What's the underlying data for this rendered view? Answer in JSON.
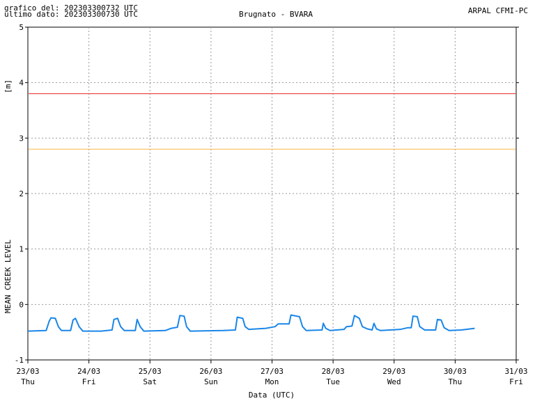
{
  "chart_data": {
    "type": "line",
    "header_left": [
      "grafico del: 202303300732 UTC",
      "ultimo dato: 202303300730 UTC"
    ],
    "title": "Brugnato - BVARA",
    "header_right": "ARPAL CFMI-PC",
    "ylabel_unit": "[m]",
    "ylabel": "MEAN CREEK LEVEL",
    "xlabel": "Data (UTC)",
    "xlim": [
      23,
      31
    ],
    "xticks": [
      {
        "value": 23,
        "label": "23/03"
      },
      {
        "value": 24,
        "label": "24/03"
      },
      {
        "value": 25,
        "label": "25/03"
      },
      {
        "value": 26,
        "label": "26/03"
      },
      {
        "value": 27,
        "label": "27/03"
      },
      {
        "value": 28,
        "label": "28/03"
      },
      {
        "value": 29,
        "label": "29/03"
      },
      {
        "value": 30,
        "label": "30/03"
      },
      {
        "value": 31,
        "label": "31/03"
      }
    ],
    "xtick_days": [
      "Thu",
      "Fri",
      "Sat",
      "Sun",
      "Mon",
      "Tue",
      "Wed",
      "Thu",
      "Fri"
    ],
    "ylim": [
      -1,
      5
    ],
    "yticks": [
      -1,
      0,
      1,
      2,
      3,
      4,
      5
    ],
    "grid": true,
    "thresholds": [
      {
        "value": 3.8,
        "color": "#e8261e"
      },
      {
        "value": 2.8,
        "color": "#ffb347"
      }
    ],
    "x": [
      23.0,
      23.3,
      23.35,
      23.38,
      23.45,
      23.5,
      23.55,
      23.7,
      23.74,
      23.78,
      23.84,
      23.9,
      24.2,
      24.38,
      24.41,
      24.47,
      24.52,
      24.58,
      24.76,
      24.79,
      24.84,
      24.9,
      25.25,
      25.35,
      25.45,
      25.49,
      25.56,
      25.6,
      25.66,
      26.2,
      26.4,
      26.43,
      26.52,
      26.56,
      26.62,
      26.9,
      27.05,
      27.1,
      27.28,
      27.31,
      27.45,
      27.5,
      27.56,
      27.82,
      27.84,
      27.88,
      27.95,
      28.18,
      28.22,
      28.31,
      28.35,
      28.43,
      28.48,
      28.56,
      28.64,
      28.67,
      28.71,
      28.78,
      29.1,
      29.22,
      29.28,
      29.31,
      29.38,
      29.42,
      29.5,
      29.68,
      29.71,
      29.77,
      29.82,
      29.9,
      30.1,
      30.32
    ],
    "series": [
      {
        "color": "#1a86e8",
        "values": [
          -0.48,
          -0.47,
          -0.3,
          -0.24,
          -0.25,
          -0.4,
          -0.47,
          -0.47,
          -0.28,
          -0.25,
          -0.4,
          -0.48,
          -0.48,
          -0.46,
          -0.27,
          -0.25,
          -0.4,
          -0.47,
          -0.47,
          -0.27,
          -0.4,
          -0.48,
          -0.47,
          -0.43,
          -0.41,
          -0.2,
          -0.21,
          -0.4,
          -0.48,
          -0.47,
          -0.46,
          -0.23,
          -0.25,
          -0.4,
          -0.45,
          -0.43,
          -0.4,
          -0.35,
          -0.35,
          -0.19,
          -0.22,
          -0.4,
          -0.47,
          -0.46,
          -0.34,
          -0.43,
          -0.47,
          -0.45,
          -0.4,
          -0.39,
          -0.2,
          -0.25,
          -0.4,
          -0.44,
          -0.46,
          -0.34,
          -0.44,
          -0.47,
          -0.45,
          -0.42,
          -0.42,
          -0.21,
          -0.22,
          -0.4,
          -0.46,
          -0.46,
          -0.27,
          -0.28,
          -0.42,
          -0.47,
          -0.46,
          -0.43
        ]
      }
    ]
  }
}
